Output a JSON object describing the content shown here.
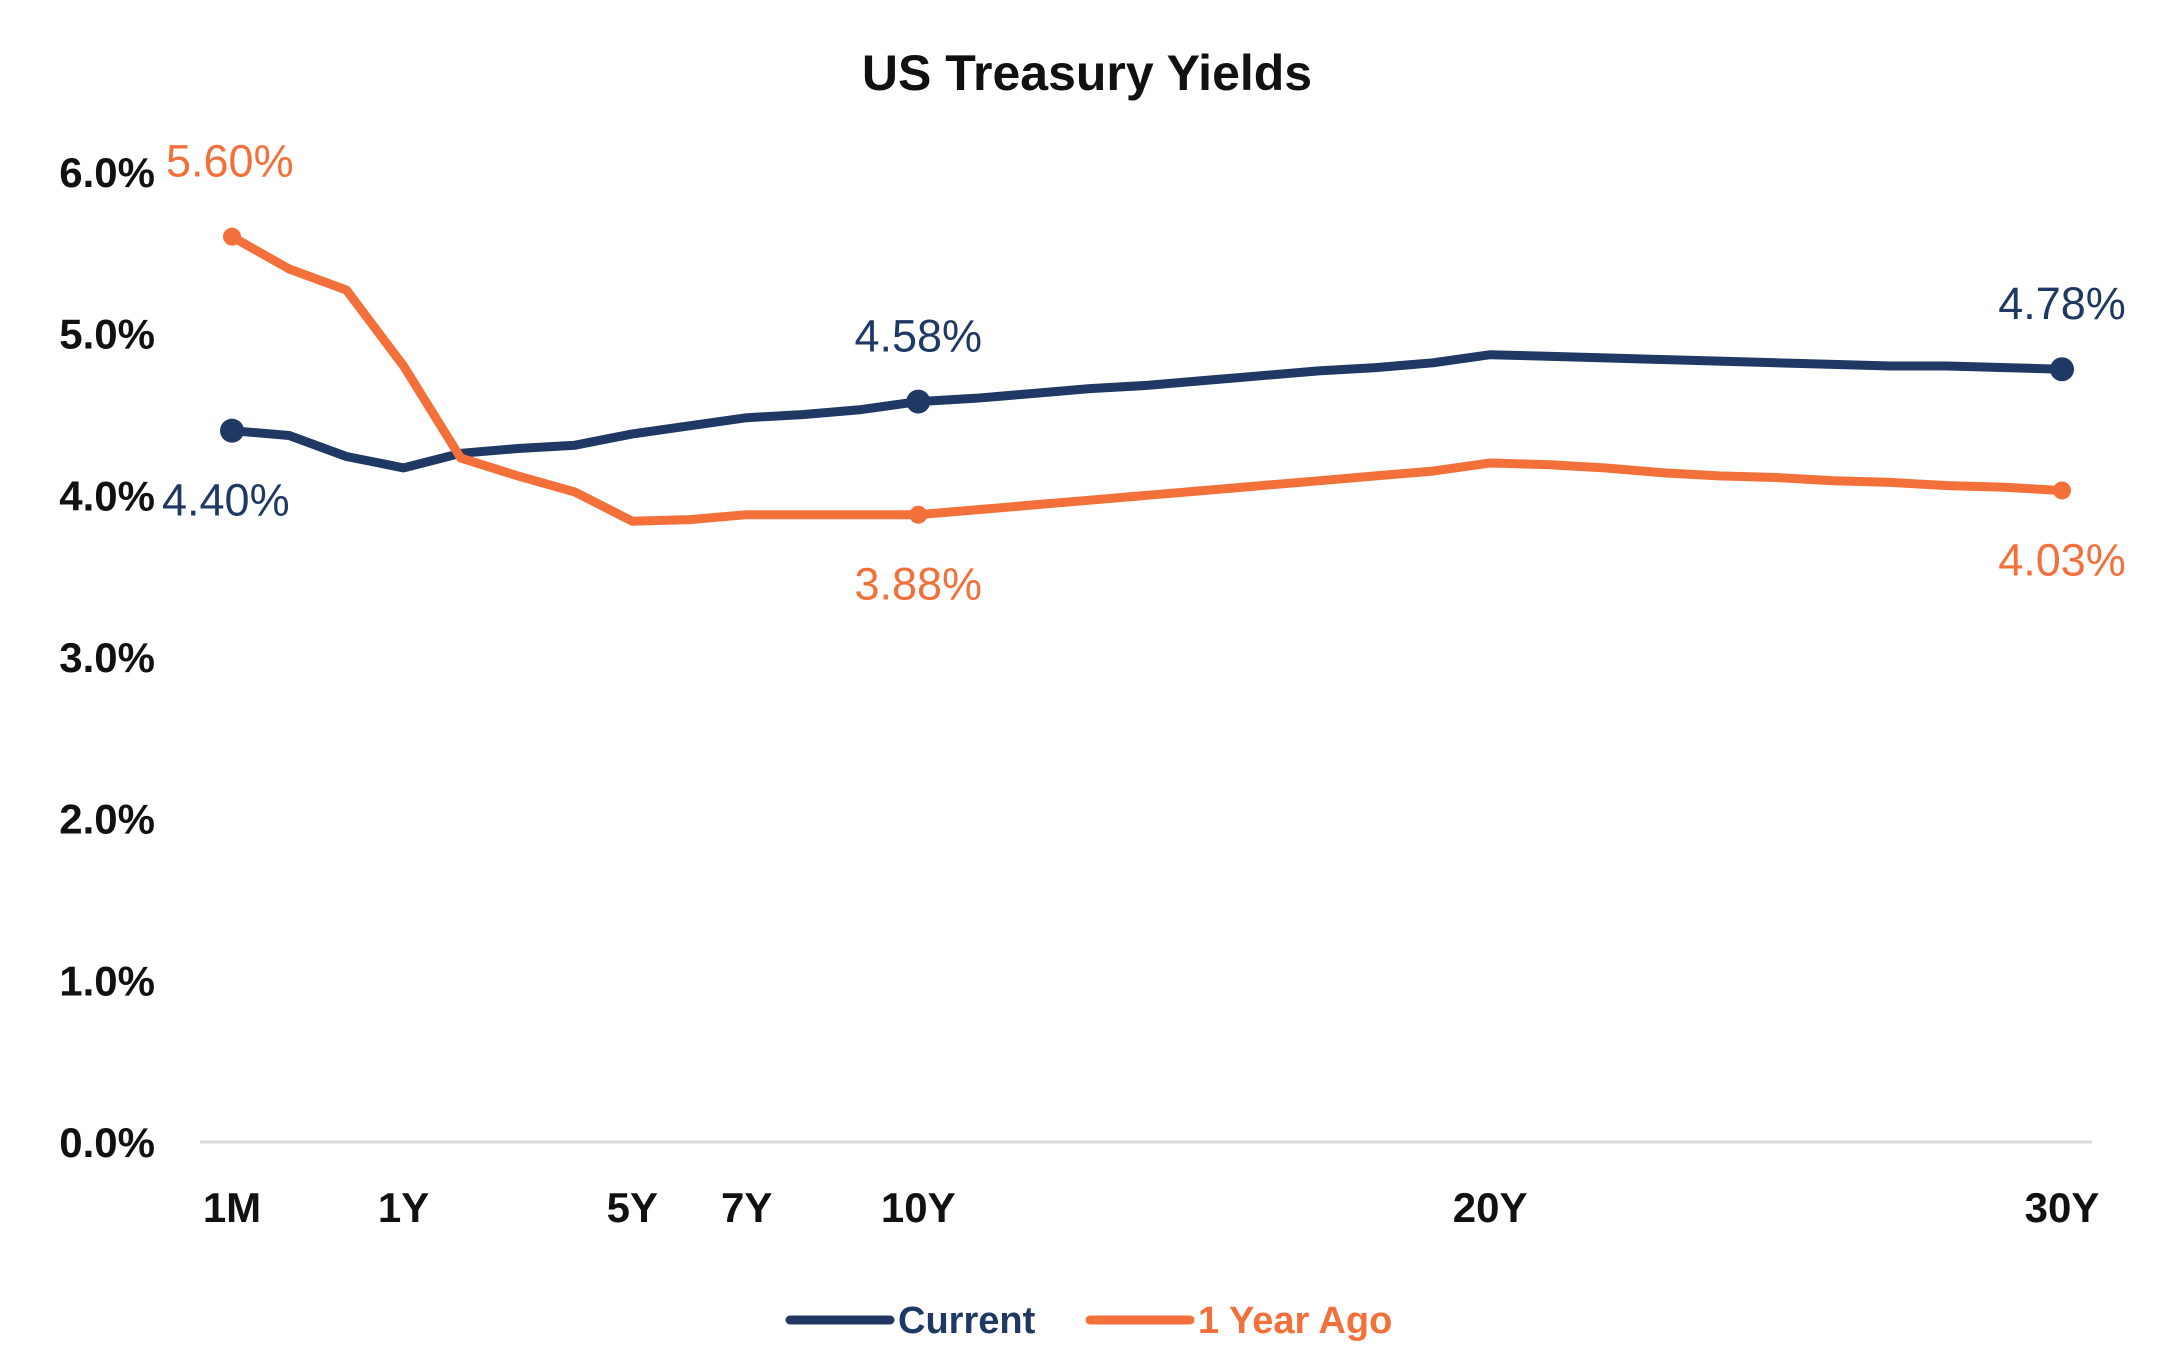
{
  "chart_data": {
    "type": "line",
    "title": "US Treasury Yields",
    "xlabel": "",
    "ylabel": "",
    "ylim": [
      0,
      6
    ],
    "xlim": [
      0,
      32
    ],
    "yticks": [
      "0.0%",
      "1.0%",
      "2.0%",
      "3.0%",
      "4.0%",
      "5.0%",
      "6.0%"
    ],
    "yticks_values": [
      0,
      1,
      2,
      3,
      4,
      5,
      6
    ],
    "xticks": [
      {
        "label": "1M",
        "x": 0
      },
      {
        "label": "1Y",
        "x": 3
      },
      {
        "label": "5Y",
        "x": 7
      },
      {
        "label": "7Y",
        "x": 9
      },
      {
        "label": "10Y",
        "x": 12
      },
      {
        "label": "20Y",
        "x": 22
      },
      {
        "label": "30Y",
        "x": 32
      }
    ],
    "grid": false,
    "legend_position": "bottom",
    "series": [
      {
        "name": "Current",
        "color": "#1f3864",
        "x": [
          0,
          1,
          2,
          3,
          4,
          5,
          6,
          7,
          8,
          9,
          10,
          11,
          12,
          13,
          14,
          15,
          16,
          17,
          18,
          19,
          20,
          21,
          22,
          23,
          24,
          25,
          26,
          27,
          28,
          29,
          30,
          31,
          32
        ],
        "values": [
          4.4,
          4.37,
          4.24,
          4.17,
          4.26,
          4.29,
          4.31,
          4.38,
          4.43,
          4.48,
          4.5,
          4.53,
          4.58,
          4.6,
          4.63,
          4.66,
          4.68,
          4.71,
          4.74,
          4.77,
          4.79,
          4.82,
          4.87,
          4.86,
          4.85,
          4.84,
          4.83,
          4.82,
          4.81,
          4.8,
          4.8,
          4.79,
          4.78
        ],
        "marked": [
          {
            "x": 0,
            "label": "4.40%"
          },
          {
            "x": 12,
            "label": "4.58%"
          },
          {
            "x": 32,
            "label": "4.78%"
          }
        ]
      },
      {
        "name": "1 Year Ago",
        "color": "#f4703a",
        "x": [
          0,
          1,
          2,
          3,
          4,
          5,
          6,
          7,
          8,
          9,
          10,
          11,
          12,
          13,
          14,
          15,
          16,
          17,
          18,
          19,
          20,
          21,
          22,
          23,
          24,
          25,
          26,
          27,
          28,
          29,
          30,
          31,
          32
        ],
        "values": [
          5.6,
          5.4,
          5.27,
          4.8,
          4.23,
          4.12,
          4.02,
          3.84,
          3.85,
          3.88,
          3.88,
          3.88,
          3.88,
          3.91,
          3.94,
          3.97,
          4.0,
          4.03,
          4.06,
          4.09,
          4.12,
          4.15,
          4.2,
          4.19,
          4.17,
          4.14,
          4.12,
          4.11,
          4.09,
          4.08,
          4.06,
          4.05,
          4.03
        ],
        "marked": [
          {
            "x": 0,
            "label": "5.60%"
          },
          {
            "x": 12,
            "label": "3.88%"
          },
          {
            "x": 32,
            "label": "4.03%"
          }
        ]
      }
    ]
  }
}
